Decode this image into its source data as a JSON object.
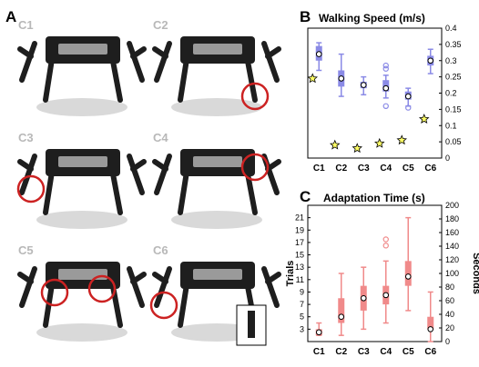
{
  "panels": {
    "a_letter": "A",
    "b_letter": "B",
    "c_letter": "C"
  },
  "photo_labels": [
    "C1",
    "C2",
    "C3",
    "C4",
    "C5",
    "C6"
  ],
  "colors": {
    "speed_box": "#8a8ae6",
    "speed_star": "#ffff66",
    "time_box": "#f08a8a",
    "damage_circle": "#cc2222",
    "robot": "#1e1e1e"
  },
  "chart_data": [
    {
      "type": "box",
      "title": "Walking Speed (m/s)",
      "categories": [
        "C1",
        "C2",
        "C3",
        "C4",
        "C5",
        "C6"
      ],
      "yaxis_side": "right",
      "ylim": [
        0,
        0.4
      ],
      "yticks": [
        "0",
        "0.05",
        "0.1",
        "0.15",
        "0.2",
        "0.25",
        "0.3",
        "0.35",
        "0.4"
      ],
      "boxes": [
        {
          "whisker_low": 0.27,
          "q1": 0.3,
          "median": 0.32,
          "q3": 0.345,
          "whisker_high": 0.355,
          "mean": 0.32,
          "outliers": []
        },
        {
          "whisker_low": 0.19,
          "q1": 0.22,
          "median": 0.245,
          "q3": 0.27,
          "whisker_high": 0.32,
          "mean": 0.245,
          "outliers": []
        },
        {
          "whisker_low": 0.195,
          "q1": 0.215,
          "median": 0.225,
          "q3": 0.235,
          "whisker_high": 0.25,
          "mean": 0.225,
          "outliers": []
        },
        {
          "whisker_low": 0.185,
          "q1": 0.205,
          "median": 0.22,
          "q3": 0.24,
          "whisker_high": 0.255,
          "mean": 0.215,
          "outliers": [
            0.16,
            0.275,
            0.285
          ]
        },
        {
          "whisker_low": 0.16,
          "q1": 0.18,
          "median": 0.19,
          "q3": 0.205,
          "whisker_high": 0.215,
          "mean": 0.19,
          "outliers": [
            0.155
          ]
        },
        {
          "whisker_low": 0.26,
          "q1": 0.285,
          "median": 0.3,
          "q3": 0.315,
          "whisker_high": 0.335,
          "mean": 0.3,
          "outliers": []
        }
      ],
      "reference_points": [
        0.245,
        0.04,
        0.03,
        0.045,
        0.055,
        0.12
      ]
    },
    {
      "type": "box",
      "title": "Adaptation Time (s)",
      "categories": [
        "C1",
        "C2",
        "C3",
        "C4",
        "C5",
        "C6"
      ],
      "ylabel_left": "Trials",
      "ylabel_right": "Seconds",
      "ylim_left": [
        1,
        23
      ],
      "yticks_left": [
        "3",
        "5",
        "7",
        "9",
        "11",
        "13",
        "15",
        "17",
        "19",
        "21"
      ],
      "ylim_right": [
        0,
        200
      ],
      "yticks_right": [
        "0",
        "20",
        "40",
        "60",
        "80",
        "100",
        "120",
        "140",
        "160",
        "180",
        "200"
      ],
      "boxes": [
        {
          "whisker_low": 2,
          "q1": 2,
          "median": 2.5,
          "q3": 3,
          "whisker_high": 4,
          "mean": 2.5,
          "outliers": []
        },
        {
          "whisker_low": 2,
          "q1": 4,
          "median": 5,
          "q3": 8,
          "whisker_high": 12,
          "mean": 5,
          "outliers": []
        },
        {
          "whisker_low": 3,
          "q1": 6,
          "median": 8,
          "q3": 10,
          "whisker_high": 13,
          "mean": 8,
          "outliers": []
        },
        {
          "whisker_low": 4,
          "q1": 7,
          "median": 8.5,
          "q3": 10,
          "whisker_high": 14,
          "mean": 8.5,
          "outliers": [
            16.5,
            17.5
          ]
        },
        {
          "whisker_low": 6,
          "q1": 10,
          "median": 11,
          "q3": 14,
          "whisker_high": 21,
          "mean": 11.5,
          "outliers": []
        },
        {
          "whisker_low": 1,
          "q1": 3,
          "median": 4,
          "q3": 5,
          "whisker_high": 9,
          "mean": 3,
          "outliers": []
        }
      ]
    }
  ]
}
